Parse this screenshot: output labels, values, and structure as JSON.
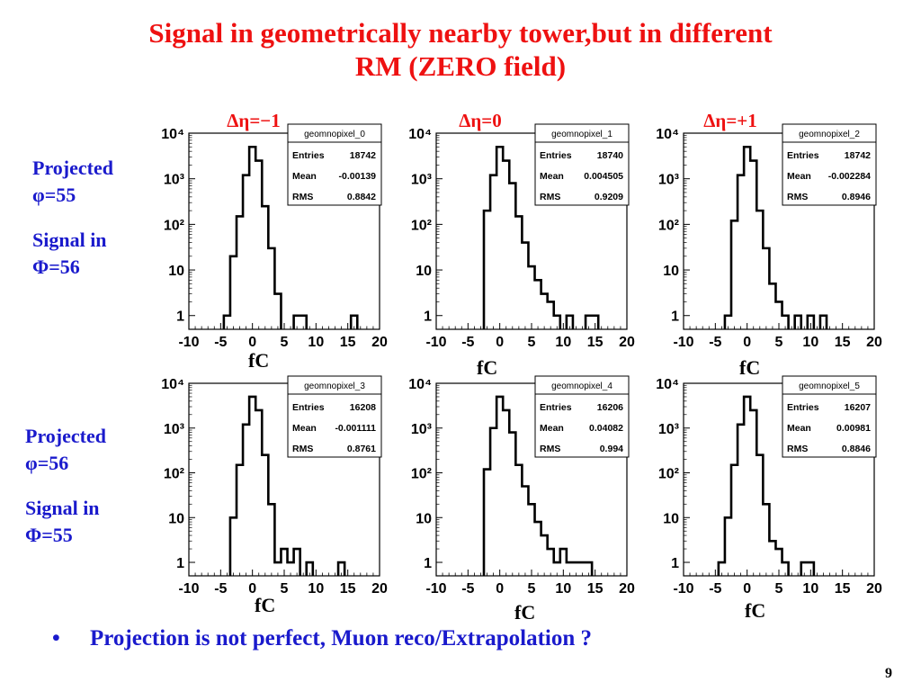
{
  "slide": {
    "title_line1": "Signal in geometrically nearby tower,but in different",
    "title_line2": "RM (ZERO field)",
    "bullet_symbol": "•",
    "note": "Projection is not perfect, Muon reco/Extrapolation ?",
    "page_number": "9",
    "column_headers": [
      "Δη=−1",
      "Δη=0",
      "Δη=+1"
    ],
    "row_labels": [
      {
        "projected": "Projected",
        "phi": "φ=55",
        "signal": "Signal in",
        "Phi": "Φ=56"
      },
      {
        "projected": "Projected",
        "phi": "φ=56",
        "signal": "Signal in",
        "Phi": "Φ=55"
      }
    ],
    "unit_label": "fC"
  },
  "chart_data": [
    {
      "type": "histogram",
      "name": "geomnopixel_0",
      "entries": "18742",
      "mean": "-0.00139",
      "rms": "0.8842",
      "xlim": [
        -10,
        20
      ],
      "ylim": [
        0.5,
        10000
      ],
      "yscale": "log",
      "xticks": [
        "-10",
        "-5",
        "0",
        "5",
        "10",
        "15",
        "20"
      ],
      "yticks": [
        "1",
        "10",
        "10²",
        "10³",
        "10⁴"
      ],
      "stats_labels": [
        "Entries",
        "Mean",
        "RMS"
      ],
      "bin_width": 1,
      "bins": [
        {
          "x": -4,
          "y": 1
        },
        {
          "x": -3,
          "y": 20
        },
        {
          "x": -2,
          "y": 150
        },
        {
          "x": -1,
          "y": 1200
        },
        {
          "x": 0,
          "y": 5000
        },
        {
          "x": 1,
          "y": 2500
        },
        {
          "x": 2,
          "y": 250
        },
        {
          "x": 3,
          "y": 30
        },
        {
          "x": 4,
          "y": 3
        },
        {
          "x": 7,
          "y": 1
        },
        {
          "x": 8,
          "y": 1
        },
        {
          "x": 16,
          "y": 1
        }
      ]
    },
    {
      "type": "histogram",
      "name": "geomnopixel_1",
      "entries": "18740",
      "mean": "0.004505",
      "rms": "0.9209",
      "xlim": [
        -10,
        20
      ],
      "ylim": [
        0.5,
        10000
      ],
      "yscale": "log",
      "xticks": [
        "-10",
        "-5",
        "0",
        "5",
        "10",
        "15",
        "20"
      ],
      "yticks": [
        "1",
        "10",
        "10²",
        "10³",
        "10⁴"
      ],
      "stats_labels": [
        "Entries",
        "Mean",
        "RMS"
      ],
      "bin_width": 1,
      "bins": [
        {
          "x": -2,
          "y": 200
        },
        {
          "x": -1,
          "y": 1200
        },
        {
          "x": 0,
          "y": 5000
        },
        {
          "x": 1,
          "y": 2500
        },
        {
          "x": 2,
          "y": 800
        },
        {
          "x": 3,
          "y": 150
        },
        {
          "x": 4,
          "y": 40
        },
        {
          "x": 5,
          "y": 12
        },
        {
          "x": 6,
          "y": 6
        },
        {
          "x": 7,
          "y": 3
        },
        {
          "x": 8,
          "y": 2
        },
        {
          "x": 9,
          "y": 1
        },
        {
          "x": 11,
          "y": 1
        },
        {
          "x": 14,
          "y": 1
        },
        {
          "x": 15,
          "y": 1
        }
      ]
    },
    {
      "type": "histogram",
      "name": "geomnopixel_2",
      "entries": "18742",
      "mean": "-0.002284",
      "rms": "0.8946",
      "xlim": [
        -10,
        20
      ],
      "ylim": [
        0.5,
        10000
      ],
      "yscale": "log",
      "xticks": [
        "-10",
        "-5",
        "0",
        "5",
        "10",
        "15",
        "20"
      ],
      "yticks": [
        "1",
        "10",
        "10²",
        "10³",
        "10⁴"
      ],
      "stats_labels": [
        "Entries",
        "Mean",
        "RMS"
      ],
      "bin_width": 1,
      "bins": [
        {
          "x": -3,
          "y": 1
        },
        {
          "x": -2,
          "y": 120
        },
        {
          "x": -1,
          "y": 1200
        },
        {
          "x": 0,
          "y": 5000
        },
        {
          "x": 1,
          "y": 2500
        },
        {
          "x": 2,
          "y": 200
        },
        {
          "x": 3,
          "y": 30
        },
        {
          "x": 4,
          "y": 5
        },
        {
          "x": 5,
          "y": 2
        },
        {
          "x": 6,
          "y": 1
        },
        {
          "x": 8,
          "y": 1
        },
        {
          "x": 10,
          "y": 1
        },
        {
          "x": 12,
          "y": 1
        }
      ]
    },
    {
      "type": "histogram",
      "name": "geomnopixel_3",
      "entries": "16208",
      "mean": "-0.001111",
      "rms": "0.8761",
      "xlim": [
        -10,
        20
      ],
      "ylim": [
        0.5,
        10000
      ],
      "yscale": "log",
      "xticks": [
        "-10",
        "-5",
        "0",
        "5",
        "10",
        "15",
        "20"
      ],
      "yticks": [
        "1",
        "10",
        "10²",
        "10³",
        "10⁴"
      ],
      "stats_labels": [
        "Entries",
        "Mean",
        "RMS"
      ],
      "bin_width": 1,
      "bins": [
        {
          "x": -3,
          "y": 10
        },
        {
          "x": -2,
          "y": 150
        },
        {
          "x": -1,
          "y": 1200
        },
        {
          "x": 0,
          "y": 5000
        },
        {
          "x": 1,
          "y": 2500
        },
        {
          "x": 2,
          "y": 250
        },
        {
          "x": 3,
          "y": 20
        },
        {
          "x": 4,
          "y": 1
        },
        {
          "x": 5,
          "y": 2
        },
        {
          "x": 6,
          "y": 1
        },
        {
          "x": 7,
          "y": 2
        },
        {
          "x": 9,
          "y": 1
        },
        {
          "x": 14,
          "y": 1
        }
      ]
    },
    {
      "type": "histogram",
      "name": "geomnopixel_4",
      "entries": "16206",
      "mean": "0.04082",
      "rms": "0.994",
      "xlim": [
        -10,
        20
      ],
      "ylim": [
        0.5,
        10000
      ],
      "yscale": "log",
      "xticks": [
        "-10",
        "-5",
        "0",
        "5",
        "10",
        "15",
        "20"
      ],
      "yticks": [
        "1",
        "10",
        "10²",
        "10³",
        "10⁴"
      ],
      "stats_labels": [
        "Entries",
        "Mean",
        "RMS"
      ],
      "bin_width": 1,
      "bins": [
        {
          "x": -2,
          "y": 120
        },
        {
          "x": -1,
          "y": 1000
        },
        {
          "x": 0,
          "y": 5000
        },
        {
          "x": 1,
          "y": 2500
        },
        {
          "x": 2,
          "y": 800
        },
        {
          "x": 3,
          "y": 150
        },
        {
          "x": 4,
          "y": 50
        },
        {
          "x": 5,
          "y": 20
        },
        {
          "x": 6,
          "y": 8
        },
        {
          "x": 7,
          "y": 4
        },
        {
          "x": 8,
          "y": 2
        },
        {
          "x": 9,
          "y": 1
        },
        {
          "x": 10,
          "y": 2
        },
        {
          "x": 11,
          "y": 1
        },
        {
          "x": 12,
          "y": 1
        },
        {
          "x": 13,
          "y": 1
        },
        {
          "x": 14,
          "y": 1
        }
      ]
    },
    {
      "type": "histogram",
      "name": "geomnopixel_5",
      "entries": "16207",
      "mean": "0.00981",
      "rms": "0.8846",
      "xlim": [
        -10,
        20
      ],
      "ylim": [
        0.5,
        10000
      ],
      "yscale": "log",
      "xticks": [
        "-10",
        "-5",
        "0",
        "5",
        "10",
        "15",
        "20"
      ],
      "yticks": [
        "1",
        "10",
        "10²",
        "10³",
        "10⁴"
      ],
      "stats_labels": [
        "Entries",
        "Mean",
        "RMS"
      ],
      "bin_width": 1,
      "bins": [
        {
          "x": -4,
          "y": 1
        },
        {
          "x": -3,
          "y": 10
        },
        {
          "x": -2,
          "y": 150
        },
        {
          "x": -1,
          "y": 1200
        },
        {
          "x": 0,
          "y": 5000
        },
        {
          "x": 1,
          "y": 2500
        },
        {
          "x": 2,
          "y": 250
        },
        {
          "x": 3,
          "y": 20
        },
        {
          "x": 4,
          "y": 3
        },
        {
          "x": 5,
          "y": 2
        },
        {
          "x": 6,
          "y": 1
        },
        {
          "x": 9,
          "y": 1
        },
        {
          "x": 10,
          "y": 1
        }
      ]
    }
  ]
}
